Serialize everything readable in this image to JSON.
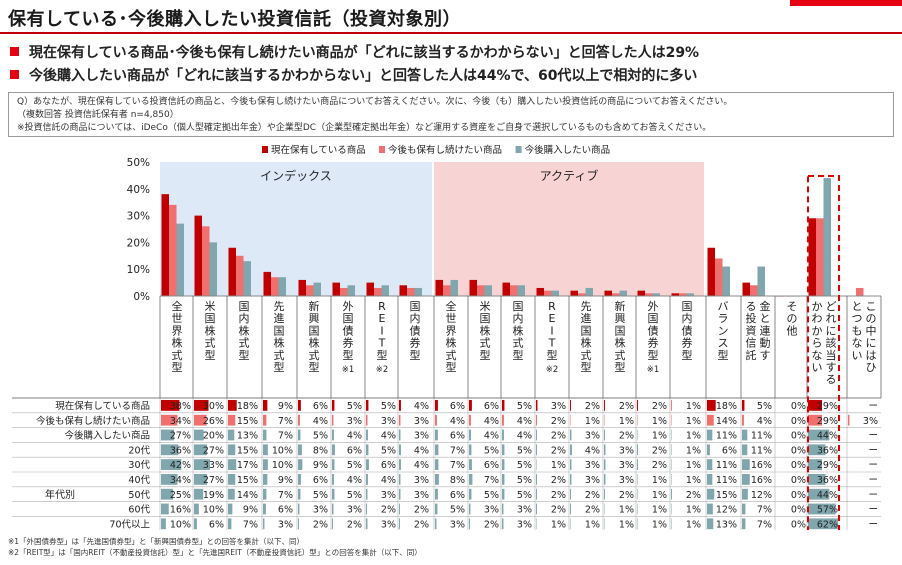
{
  "header": {
    "title": "保有している･今後購入したい投資信託（投資対象別）",
    "bullets": [
      "現在保有している商品･今後も保有し続けたい商品が「どれに該当するかわからない」と回答した人は29%",
      "今後購入したい商品が「どれに該当するかわからない」と回答した人は44%で、60代以上で相対的に多い"
    ]
  },
  "question": {
    "q": "Q）あなたが、現在保有している投資信託の商品と、今後も保有し続けたい商品についてお答えください。次に、今後（も）購入したい投資信託の商品についてお答えください。",
    "base": "（複数回答 投資信託保有者 n=4,850）",
    "note": "※投資信託の商品については、iDeCo（個人型確定拠出年金）や企業型DC（企業型確定拠出年金）など運用する資産をご自身で選択しているものも含めてお答えください。"
  },
  "colors": {
    "s1": "#c00000",
    "s2": "#f07070",
    "s3": "#7fa7ad",
    "index_bg": "#dde9f7",
    "active_bg": "#f7d3d3",
    "highlight": "#e00000"
  },
  "chart_data": {
    "type": "bar",
    "ylim": [
      0,
      50
    ],
    "yticks": [
      "0%",
      "10%",
      "20%",
      "30%",
      "40%",
      "50%"
    ],
    "groups": [
      {
        "label": "インデックス",
        "from": 0,
        "to": 7
      },
      {
        "label": "アクティブ",
        "from": 8,
        "to": 15
      }
    ],
    "categories": [
      "全世界株式型",
      "米国株式型",
      "国内株式型",
      "先進国株式型",
      "新興国株式型",
      "外国債券型",
      "REIT型",
      "国内債券型",
      "全世界株式型",
      "米国株式型",
      "国内株式型",
      "REIT型",
      "先進国株式型",
      "新興国株式型",
      "外国債券型",
      "国内債券型",
      "バランス型",
      "金と連動する投資信託",
      "その他",
      "どれに該当するかわからない",
      "この中にはひとつもない"
    ],
    "category_notes": [
      "",
      "",
      "",
      "",
      "",
      "※1",
      "※2",
      "",
      "",
      "",
      "",
      "※2",
      "",
      "",
      "※1",
      "",
      "",
      "",
      "",
      "",
      ""
    ],
    "series": [
      {
        "name": "現在保有している商品",
        "values": [
          38,
          30,
          18,
          9,
          6,
          5,
          5,
          4,
          6,
          6,
          5,
          3,
          2,
          2,
          2,
          1,
          18,
          5,
          0,
          29,
          null
        ]
      },
      {
        "name": "今後も保有し続けたい商品",
        "values": [
          34,
          26,
          15,
          7,
          4,
          3,
          3,
          3,
          4,
          4,
          4,
          2,
          1,
          1,
          1,
          1,
          14,
          4,
          0,
          29,
          3
        ]
      },
      {
        "name": "今後購入したい商品",
        "values": [
          27,
          20,
          13,
          7,
          5,
          4,
          4,
          3,
          6,
          4,
          4,
          2,
          3,
          2,
          1,
          1,
          11,
          11,
          0,
          44,
          null
        ]
      }
    ],
    "table": {
      "rows": [
        {
          "label": "現在保有している商品",
          "type": "s1",
          "values": [
            "38%",
            "30%",
            "18%",
            "9%",
            "6%",
            "5%",
            "5%",
            "4%",
            "6%",
            "6%",
            "5%",
            "3%",
            "2%",
            "2%",
            "2%",
            "1%",
            "18%",
            "5%",
            "0%",
            "29%",
            "ー"
          ]
        },
        {
          "label": "今後も保有し続けたい商品",
          "type": "s2",
          "values": [
            "34%",
            "26%",
            "15%",
            "7%",
            "4%",
            "3%",
            "3%",
            "3%",
            "4%",
            "4%",
            "4%",
            "2%",
            "1%",
            "1%",
            "1%",
            "1%",
            "14%",
            "4%",
            "0%",
            "29%",
            "3%"
          ]
        },
        {
          "label": "今後購入したい商品",
          "type": "s3",
          "values": [
            "27%",
            "20%",
            "13%",
            "7%",
            "5%",
            "4%",
            "4%",
            "3%",
            "6%",
            "4%",
            "4%",
            "2%",
            "3%",
            "2%",
            "1%",
            "1%",
            "11%",
            "11%",
            "0%",
            "44%",
            "ー"
          ]
        },
        {
          "label": "20代",
          "type": "s3",
          "values": [
            "36%",
            "27%",
            "15%",
            "10%",
            "8%",
            "6%",
            "5%",
            "4%",
            "7%",
            "5%",
            "5%",
            "2%",
            "4%",
            "3%",
            "2%",
            "1%",
            "6%",
            "11%",
            "0%",
            "36%",
            "ー"
          ]
        },
        {
          "label": "30代",
          "type": "s3",
          "values": [
            "42%",
            "33%",
            "17%",
            "10%",
            "9%",
            "5%",
            "6%",
            "4%",
            "7%",
            "6%",
            "5%",
            "1%",
            "3%",
            "3%",
            "2%",
            "1%",
            "11%",
            "16%",
            "0%",
            "29%",
            "ー"
          ]
        },
        {
          "label": "40代",
          "type": "s3",
          "values": [
            "34%",
            "27%",
            "15%",
            "9%",
            "6%",
            "4%",
            "4%",
            "3%",
            "8%",
            "7%",
            "5%",
            "2%",
            "3%",
            "3%",
            "1%",
            "1%",
            "11%",
            "16%",
            "0%",
            "36%",
            "ー"
          ]
        },
        {
          "label": "50代",
          "type": "s3",
          "values": [
            "25%",
            "19%",
            "14%",
            "7%",
            "5%",
            "5%",
            "3%",
            "3%",
            "6%",
            "5%",
            "5%",
            "2%",
            "2%",
            "2%",
            "1%",
            "2%",
            "15%",
            "12%",
            "0%",
            "44%",
            "ー"
          ]
        },
        {
          "label": "60代",
          "type": "s3",
          "values": [
            "16%",
            "10%",
            "9%",
            "6%",
            "3%",
            "3%",
            "2%",
            "2%",
            "5%",
            "3%",
            "3%",
            "2%",
            "2%",
            "1%",
            "1%",
            "1%",
            "12%",
            "7%",
            "0%",
            "57%",
            "ー"
          ]
        },
        {
          "label": "70代以上",
          "type": "s3",
          "values": [
            "10%",
            "6%",
            "7%",
            "3%",
            "2%",
            "2%",
            "3%",
            "2%",
            "3%",
            "2%",
            "3%",
            "1%",
            "1%",
            "1%",
            "1%",
            "1%",
            "13%",
            "7%",
            "0%",
            "62%",
            "ー"
          ]
        }
      ],
      "age_group_label": "年代別"
    }
  },
  "footnotes": [
    "※1「外国債券型」は「先進国債券型」と「新興国債券型」との回答を集計（以下、同）",
    "※2「REIT型」は「国内REIT（不動産投資信託）型」と「先進国REIT（不動産投資信託）型」との回答を集計（以下、同）"
  ]
}
